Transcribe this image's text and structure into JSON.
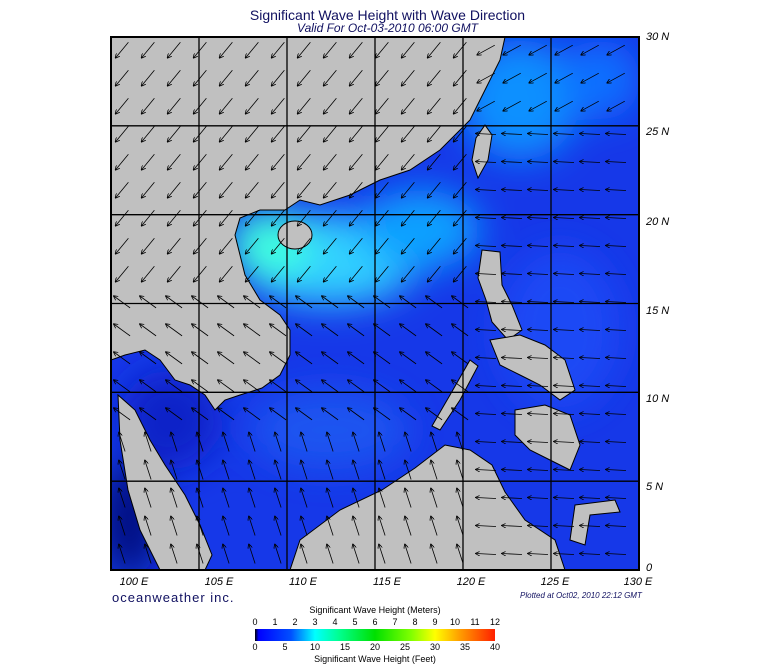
{
  "header": {
    "title": "Significant Wave Height with Wave Direction",
    "subtitle": "Valid For Oct-03-2010 06:00 GMT"
  },
  "map": {
    "lat_labels": [
      "30 N",
      "25 N",
      "20 N",
      "15 N",
      "10 N",
      "5 N",
      "0"
    ],
    "lon_labels": [
      "100 E",
      "105 E",
      "110 E",
      "115 E",
      "120 E",
      "125 E",
      "130 E"
    ],
    "colors": {
      "land": "#c0c0c0",
      "sea": "#1638e8",
      "grid": "#000000"
    }
  },
  "footer": {
    "brand": "oceanweather inc.",
    "plotted": "Plotted at Oct02, 2010 22:12 GMT"
  },
  "colorbar": {
    "meters_title": "Significant Wave Height (Meters)",
    "feet_title": "Significant Wave Height (Feet)",
    "meters_ticks": [
      "0",
      "1",
      "2",
      "3",
      "4",
      "5",
      "6",
      "7",
      "8",
      "9",
      "10",
      "11",
      "12"
    ],
    "feet_ticks": [
      "0",
      "5",
      "10",
      "15",
      "20",
      "25",
      "30",
      "35",
      "40"
    ]
  }
}
